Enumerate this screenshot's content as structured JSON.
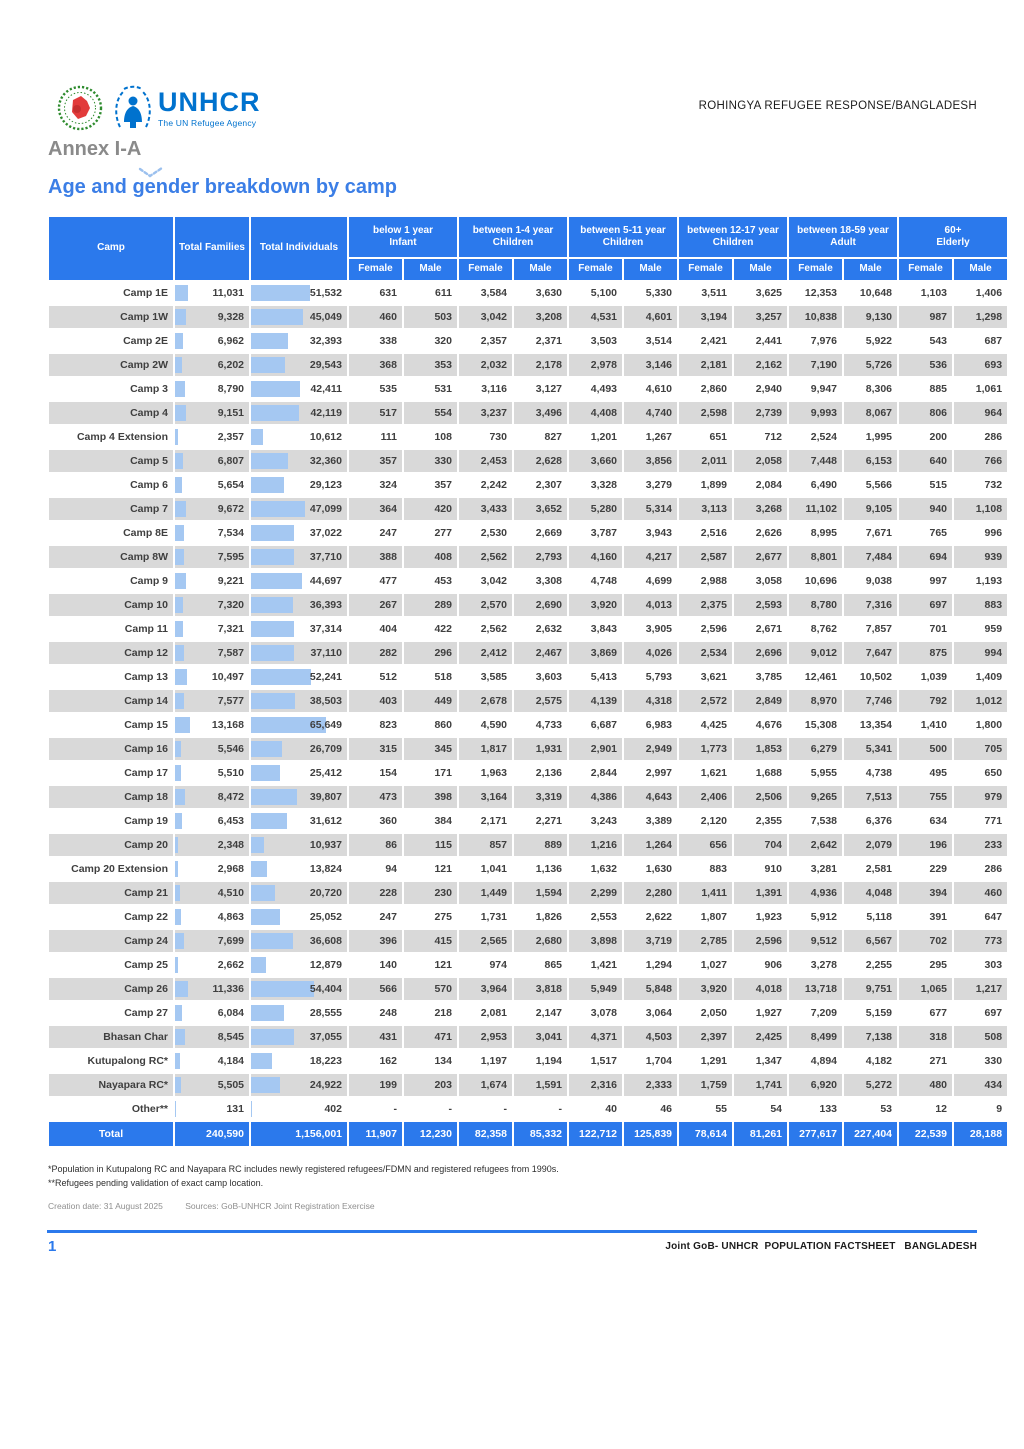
{
  "header": {
    "right_text": "ROHINGYA REFUGEE RESPONSE/BANGLADESH",
    "unhcr_logo_text": "UNHCR",
    "unhcr_tagline": "The UN Refugee Agency"
  },
  "annex_title": "Annex I-A",
  "page_title": "Age and gender breakdown by camp",
  "table": {
    "col_groups": [
      {
        "label": "Camp"
      },
      {
        "label": "Total Families"
      },
      {
        "label": "Total Individuals"
      },
      {
        "label": "below 1 year",
        "sub": "Infant"
      },
      {
        "label": "between 1-4 year",
        "sub": "Children"
      },
      {
        "label": "between 5-11 year",
        "sub": "Children"
      },
      {
        "label": "between 12-17 year",
        "sub": "Children"
      },
      {
        "label": "between 18-59 year",
        "sub": "Adult"
      },
      {
        "label": "60+",
        "sub": "Elderly"
      }
    ],
    "gender_labels": [
      "Female",
      "Male"
    ],
    "rows": [
      {
        "camp": "Camp 1E",
        "families": "11,031",
        "individuals": "51,532",
        "values": [
          "631",
          "611",
          "3,584",
          "3,630",
          "5,100",
          "5,330",
          "3,511",
          "3,625",
          "12,353",
          "10,648",
          "1,103",
          "1,406"
        ]
      },
      {
        "camp": "Camp 1W",
        "families": "9,328",
        "individuals": "45,049",
        "values": [
          "460",
          "503",
          "3,042",
          "3,208",
          "4,531",
          "4,601",
          "3,194",
          "3,257",
          "10,838",
          "9,130",
          "987",
          "1,298"
        ]
      },
      {
        "camp": "Camp 2E",
        "families": "6,962",
        "individuals": "32,393",
        "values": [
          "338",
          "320",
          "2,357",
          "2,371",
          "3,503",
          "3,514",
          "2,421",
          "2,441",
          "7,976",
          "5,922",
          "543",
          "687"
        ]
      },
      {
        "camp": "Camp 2W",
        "families": "6,202",
        "individuals": "29,543",
        "values": [
          "368",
          "353",
          "2,032",
          "2,178",
          "2,978",
          "3,146",
          "2,181",
          "2,162",
          "7,190",
          "5,726",
          "536",
          "693"
        ]
      },
      {
        "camp": "Camp 3",
        "families": "8,790",
        "individuals": "42,411",
        "values": [
          "535",
          "531",
          "3,116",
          "3,127",
          "4,493",
          "4,610",
          "2,860",
          "2,940",
          "9,947",
          "8,306",
          "885",
          "1,061"
        ]
      },
      {
        "camp": "Camp 4",
        "families": "9,151",
        "individuals": "42,119",
        "values": [
          "517",
          "554",
          "3,237",
          "3,496",
          "4,408",
          "4,740",
          "2,598",
          "2,739",
          "9,993",
          "8,067",
          "806",
          "964"
        ]
      },
      {
        "camp": "Camp 4 Extension",
        "families": "2,357",
        "individuals": "10,612",
        "values": [
          "111",
          "108",
          "730",
          "827",
          "1,201",
          "1,267",
          "651",
          "712",
          "2,524",
          "1,995",
          "200",
          "286"
        ]
      },
      {
        "camp": "Camp 5",
        "families": "6,807",
        "individuals": "32,360",
        "values": [
          "357",
          "330",
          "2,453",
          "2,628",
          "3,660",
          "3,856",
          "2,011",
          "2,058",
          "7,448",
          "6,153",
          "640",
          "766"
        ]
      },
      {
        "camp": "Camp 6",
        "families": "5,654",
        "individuals": "29,123",
        "values": [
          "324",
          "357",
          "2,242",
          "2,307",
          "3,328",
          "3,279",
          "1,899",
          "2,084",
          "6,490",
          "5,566",
          "515",
          "732"
        ]
      },
      {
        "camp": "Camp 7",
        "families": "9,672",
        "individuals": "47,099",
        "values": [
          "364",
          "420",
          "3,433",
          "3,652",
          "5,280",
          "5,314",
          "3,113",
          "3,268",
          "11,102",
          "9,105",
          "940",
          "1,108"
        ]
      },
      {
        "camp": "Camp 8E",
        "families": "7,534",
        "individuals": "37,022",
        "values": [
          "247",
          "277",
          "2,530",
          "2,669",
          "3,787",
          "3,943",
          "2,516",
          "2,626",
          "8,995",
          "7,671",
          "765",
          "996"
        ]
      },
      {
        "camp": "Camp 8W",
        "families": "7,595",
        "individuals": "37,710",
        "values": [
          "388",
          "408",
          "2,562",
          "2,793",
          "4,160",
          "4,217",
          "2,587",
          "2,677",
          "8,801",
          "7,484",
          "694",
          "939"
        ]
      },
      {
        "camp": "Camp 9",
        "families": "9,221",
        "individuals": "44,697",
        "values": [
          "477",
          "453",
          "3,042",
          "3,308",
          "4,748",
          "4,699",
          "2,988",
          "3,058",
          "10,696",
          "9,038",
          "997",
          "1,193"
        ]
      },
      {
        "camp": "Camp 10",
        "families": "7,320",
        "individuals": "36,393",
        "values": [
          "267",
          "289",
          "2,570",
          "2,690",
          "3,920",
          "4,013",
          "2,375",
          "2,593",
          "8,780",
          "7,316",
          "697",
          "883"
        ]
      },
      {
        "camp": "Camp 11",
        "families": "7,321",
        "individuals": "37,314",
        "values": [
          "404",
          "422",
          "2,562",
          "2,632",
          "3,843",
          "3,905",
          "2,596",
          "2,671",
          "8,762",
          "7,857",
          "701",
          "959"
        ]
      },
      {
        "camp": "Camp 12",
        "families": "7,587",
        "individuals": "37,110",
        "values": [
          "282",
          "296",
          "2,412",
          "2,467",
          "3,869",
          "4,026",
          "2,534",
          "2,696",
          "9,012",
          "7,647",
          "875",
          "994"
        ]
      },
      {
        "camp": "Camp 13",
        "families": "10,497",
        "individuals": "52,241",
        "values": [
          "512",
          "518",
          "3,585",
          "3,603",
          "5,413",
          "5,793",
          "3,621",
          "3,785",
          "12,461",
          "10,502",
          "1,039",
          "1,409"
        ]
      },
      {
        "camp": "Camp 14",
        "families": "7,577",
        "individuals": "38,503",
        "values": [
          "403",
          "449",
          "2,678",
          "2,575",
          "4,139",
          "4,318",
          "2,572",
          "2,849",
          "8,970",
          "7,746",
          "792",
          "1,012"
        ]
      },
      {
        "camp": "Camp 15",
        "families": "13,168",
        "individuals": "65,649",
        "values": [
          "823",
          "860",
          "4,590",
          "4,733",
          "6,687",
          "6,983",
          "4,425",
          "4,676",
          "15,308",
          "13,354",
          "1,410",
          "1,800"
        ]
      },
      {
        "camp": "Camp 16",
        "families": "5,546",
        "individuals": "26,709",
        "values": [
          "315",
          "345",
          "1,817",
          "1,931",
          "2,901",
          "2,949",
          "1,773",
          "1,853",
          "6,279",
          "5,341",
          "500",
          "705"
        ]
      },
      {
        "camp": "Camp 17",
        "families": "5,510",
        "individuals": "25,412",
        "values": [
          "154",
          "171",
          "1,963",
          "2,136",
          "2,844",
          "2,997",
          "1,621",
          "1,688",
          "5,955",
          "4,738",
          "495",
          "650"
        ]
      },
      {
        "camp": "Camp 18",
        "families": "8,472",
        "individuals": "39,807",
        "values": [
          "473",
          "398",
          "3,164",
          "3,319",
          "4,386",
          "4,643",
          "2,406",
          "2,506",
          "9,265",
          "7,513",
          "755",
          "979"
        ]
      },
      {
        "camp": "Camp 19",
        "families": "6,453",
        "individuals": "31,612",
        "values": [
          "360",
          "384",
          "2,171",
          "2,271",
          "3,243",
          "3,389",
          "2,120",
          "2,355",
          "7,538",
          "6,376",
          "634",
          "771"
        ]
      },
      {
        "camp": "Camp 20",
        "families": "2,348",
        "individuals": "10,937",
        "values": [
          "86",
          "115",
          "857",
          "889",
          "1,216",
          "1,264",
          "656",
          "704",
          "2,642",
          "2,079",
          "196",
          "233"
        ]
      },
      {
        "camp": "Camp 20 Extension",
        "families": "2,968",
        "individuals": "13,824",
        "values": [
          "94",
          "121",
          "1,041",
          "1,136",
          "1,632",
          "1,630",
          "883",
          "910",
          "3,281",
          "2,581",
          "229",
          "286"
        ]
      },
      {
        "camp": "Camp 21",
        "families": "4,510",
        "individuals": "20,720",
        "values": [
          "228",
          "230",
          "1,449",
          "1,594",
          "2,299",
          "2,280",
          "1,411",
          "1,391",
          "4,936",
          "4,048",
          "394",
          "460"
        ]
      },
      {
        "camp": "Camp 22",
        "families": "4,863",
        "individuals": "25,052",
        "values": [
          "247",
          "275",
          "1,731",
          "1,826",
          "2,553",
          "2,622",
          "1,807",
          "1,923",
          "5,912",
          "5,118",
          "391",
          "647"
        ]
      },
      {
        "camp": "Camp 24",
        "families": "7,699",
        "individuals": "36,608",
        "values": [
          "396",
          "415",
          "2,565",
          "2,680",
          "3,898",
          "3,719",
          "2,785",
          "2,596",
          "9,512",
          "6,567",
          "702",
          "773"
        ]
      },
      {
        "camp": "Camp 25",
        "families": "2,662",
        "individuals": "12,879",
        "values": [
          "140",
          "121",
          "974",
          "865",
          "1,421",
          "1,294",
          "1,027",
          "906",
          "3,278",
          "2,255",
          "295",
          "303"
        ]
      },
      {
        "camp": "Camp 26",
        "families": "11,336",
        "individuals": "54,404",
        "values": [
          "566",
          "570",
          "3,964",
          "3,818",
          "5,949",
          "5,848",
          "3,920",
          "4,018",
          "13,718",
          "9,751",
          "1,065",
          "1,217"
        ]
      },
      {
        "camp": "Camp 27",
        "families": "6,084",
        "individuals": "28,555",
        "values": [
          "248",
          "218",
          "2,081",
          "2,147",
          "3,078",
          "3,064",
          "2,050",
          "1,927",
          "7,209",
          "5,159",
          "677",
          "697"
        ]
      },
      {
        "camp": "Bhasan Char",
        "families": "8,545",
        "individuals": "37,055",
        "values": [
          "431",
          "471",
          "2,953",
          "3,041",
          "4,371",
          "4,503",
          "2,397",
          "2,425",
          "8,499",
          "7,138",
          "318",
          "508"
        ]
      },
      {
        "camp": "Kutupalong RC*",
        "families": "4,184",
        "individuals": "18,223",
        "values": [
          "162",
          "134",
          "1,197",
          "1,194",
          "1,517",
          "1,704",
          "1,291",
          "1,347",
          "4,894",
          "4,182",
          "271",
          "330"
        ]
      },
      {
        "camp": "Nayapara RC*",
        "families": "5,505",
        "individuals": "24,922",
        "values": [
          "199",
          "203",
          "1,674",
          "1,591",
          "2,316",
          "2,333",
          "1,759",
          "1,741",
          "6,920",
          "5,272",
          "480",
          "434"
        ]
      },
      {
        "camp": "Other**",
        "families": "131",
        "individuals": "402",
        "values": [
          "-",
          "-",
          "-",
          "-",
          "40",
          "46",
          "55",
          "54",
          "133",
          "53",
          "12",
          "9"
        ]
      }
    ],
    "total": {
      "label": "Total",
      "families": "240,590",
      "individuals": "1,156,001",
      "values": [
        "11,907",
        "12,230",
        "82,358",
        "85,332",
        "122,712",
        "125,839",
        "78,614",
        "81,261",
        "277,617",
        "227,404",
        "22,539",
        "28,188"
      ]
    }
  },
  "footnotes": [
    "*Population in Kutupalong RC and Nayapara RC includes newly registered refugees/FDMN and registered refugees from 1990s.",
    "**Refugees pending validation of exact camp location."
  ],
  "meta": {
    "creation": "Creation date: 31 August 2025",
    "sources": "Sources: GoB-UNHCR Joint Registration Exercise"
  },
  "footer": {
    "page_number": "1",
    "right_text": "Joint GoB- UNHCR  POPULATION FACTSHEET   BANGLADESH"
  },
  "colors": {
    "accent_blue": "#2b79ec",
    "title_blue": "#3b7ee6",
    "unhcr_blue": "#0072ce",
    "row_alt_gray": "#d9d9d9",
    "bar_blue": "#a5c8f2"
  }
}
